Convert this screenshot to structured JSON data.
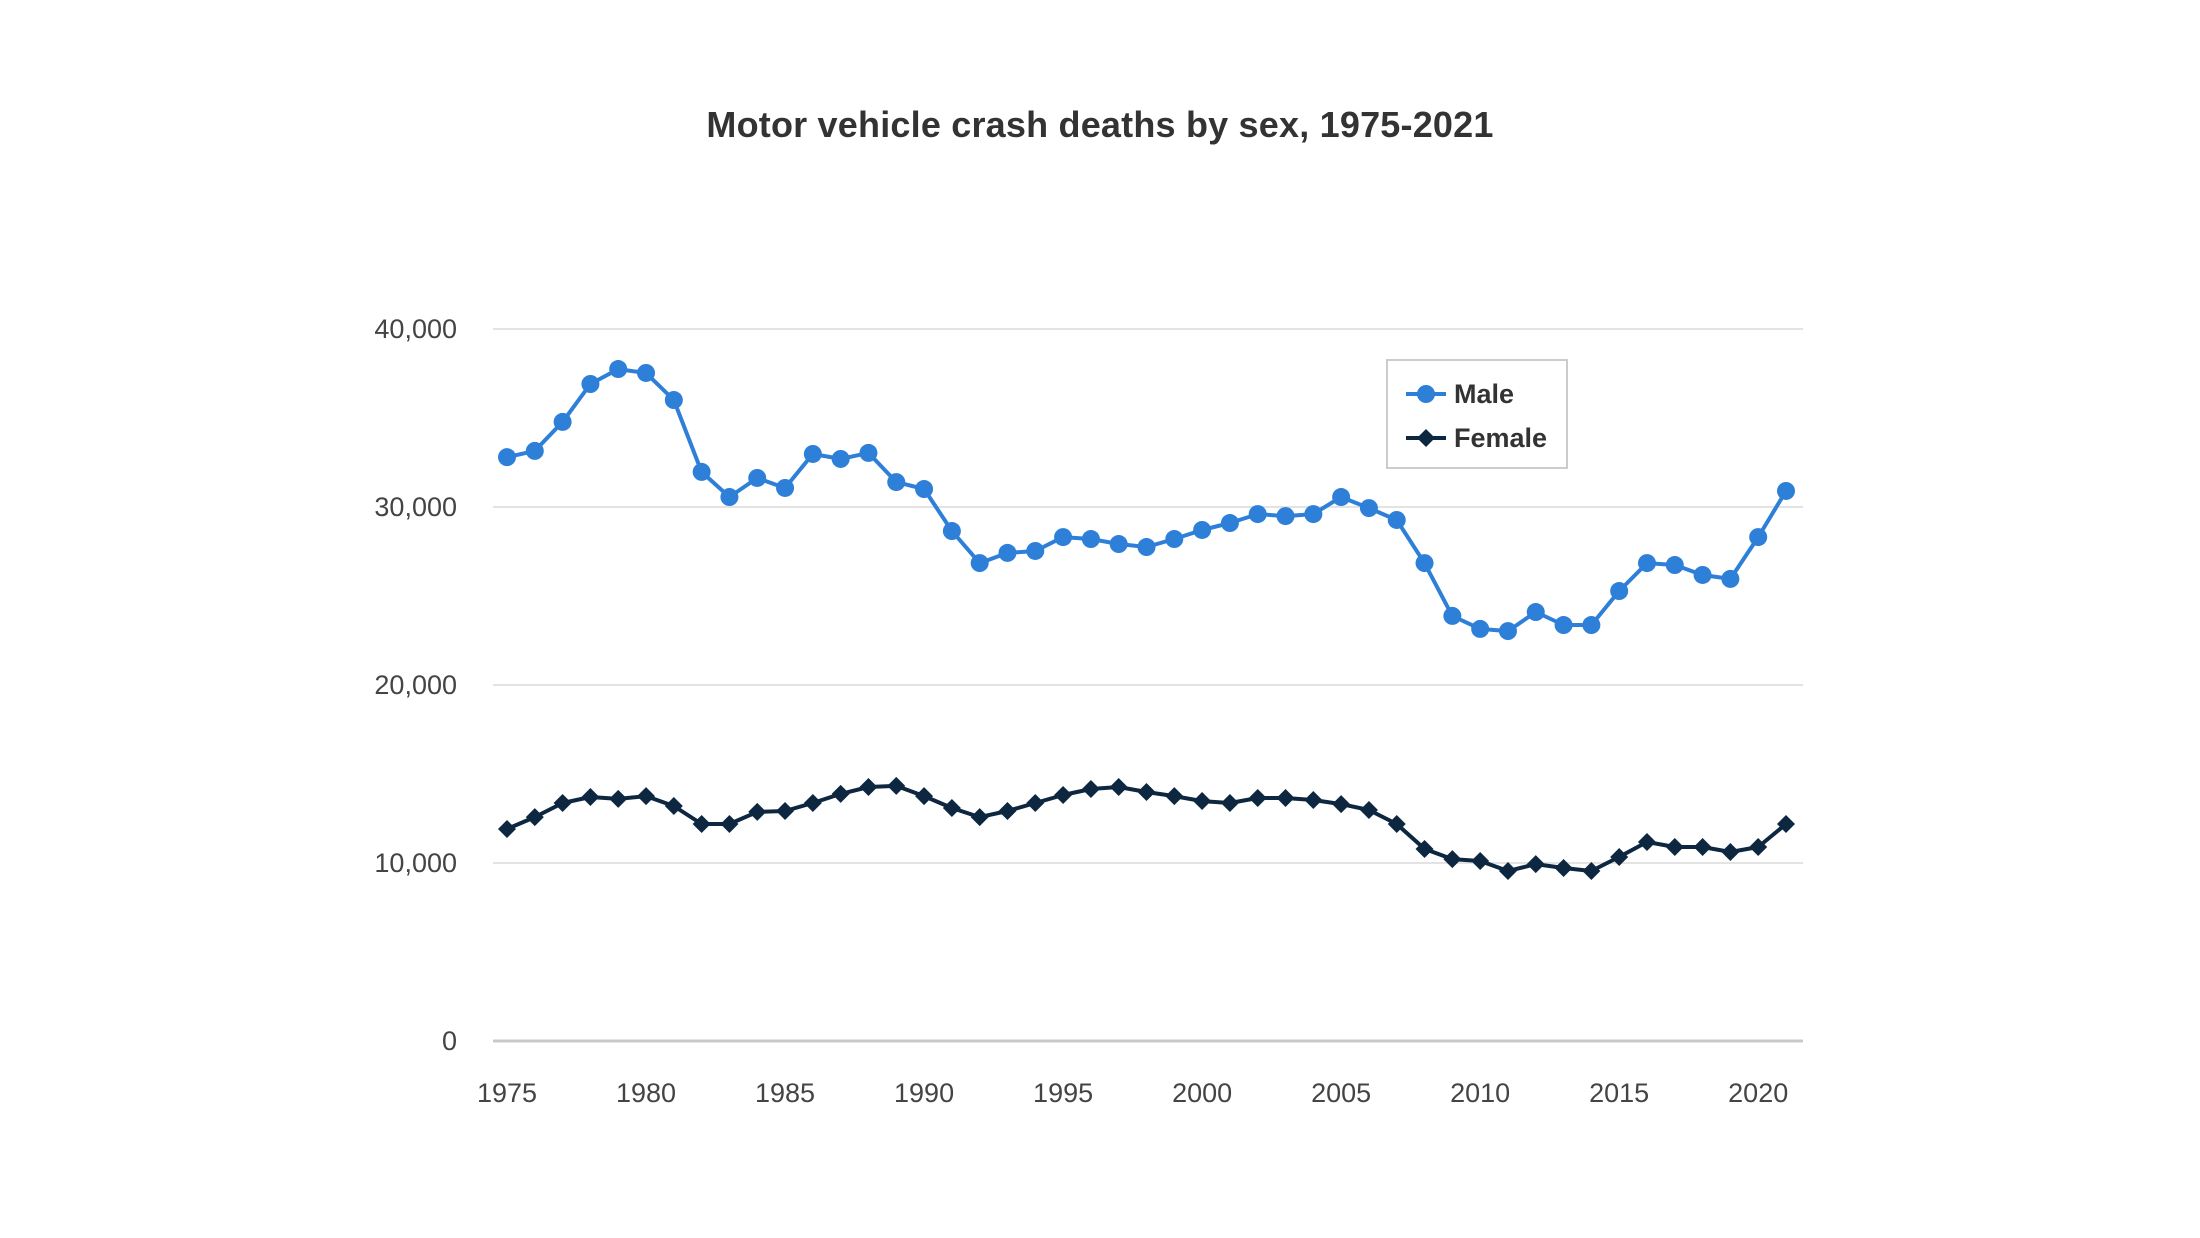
{
  "chart_data": {
    "type": "line",
    "title": "Motor vehicle crash deaths by sex, 1975-2021",
    "xlabel": "",
    "ylabel": "",
    "ylim": [
      0,
      40000
    ],
    "xlim": [
      1975,
      2021
    ],
    "grid": true,
    "legend_position": "top-right",
    "y_ticks": [
      0,
      10000,
      20000,
      30000,
      40000
    ],
    "y_tick_labels": [
      "0",
      "10,000",
      "20,000",
      "30,000",
      "40,000"
    ],
    "x_ticks": [
      1975,
      1980,
      1985,
      1990,
      1995,
      2000,
      2005,
      2010,
      2015,
      2020
    ],
    "x_tick_labels": [
      "1975",
      "1980",
      "1985",
      "1990",
      "1995",
      "2000",
      "2005",
      "2010",
      "2015",
      "2020"
    ],
    "x": [
      1975,
      1976,
      1977,
      1978,
      1979,
      1980,
      1981,
      1982,
      1983,
      1984,
      1985,
      1986,
      1987,
      1988,
      1989,
      1990,
      1991,
      1992,
      1993,
      1994,
      1995,
      1996,
      1997,
      1998,
      1999,
      2000,
      2001,
      2002,
      2003,
      2004,
      2005,
      2006,
      2007,
      2008,
      2009,
      2010,
      2011,
      2012,
      2013,
      2014,
      2015,
      2016,
      2017,
      2018,
      2019,
      2020,
      2021
    ],
    "series": [
      {
        "name": "Male",
        "color": "#2e7fd8",
        "marker": "circle",
        "values": [
          32800,
          33150,
          34780,
          36910,
          37750,
          37530,
          36010,
          31970,
          30560,
          31630,
          31070,
          32980,
          32700,
          33040,
          31400,
          31010,
          28650,
          26850,
          27420,
          27530,
          28310,
          28200,
          27920,
          27750,
          28200,
          28710,
          29100,
          29600,
          29490,
          29600,
          30560,
          29940,
          29270,
          26850,
          23880,
          23150,
          23030,
          24100,
          23370,
          23370,
          25280,
          26850,
          26740,
          26180,
          25960,
          28310,
          30900
        ]
      },
      {
        "name": "Female",
        "color": "#0e2740",
        "marker": "diamond",
        "values": [
          11910,
          12580,
          13370,
          13710,
          13600,
          13760,
          13200,
          12190,
          12190,
          12870,
          12920,
          13370,
          13880,
          14270,
          14330,
          13760,
          13090,
          12580,
          12920,
          13370,
          13820,
          14160,
          14270,
          13990,
          13760,
          13480,
          13370,
          13650,
          13650,
          13540,
          13310,
          12980,
          12190,
          10790,
          10220,
          10110,
          9550,
          9940,
          9720,
          9550,
          10340,
          11180,
          10900,
          10900,
          10620,
          10900,
          12190
        ]
      }
    ]
  }
}
